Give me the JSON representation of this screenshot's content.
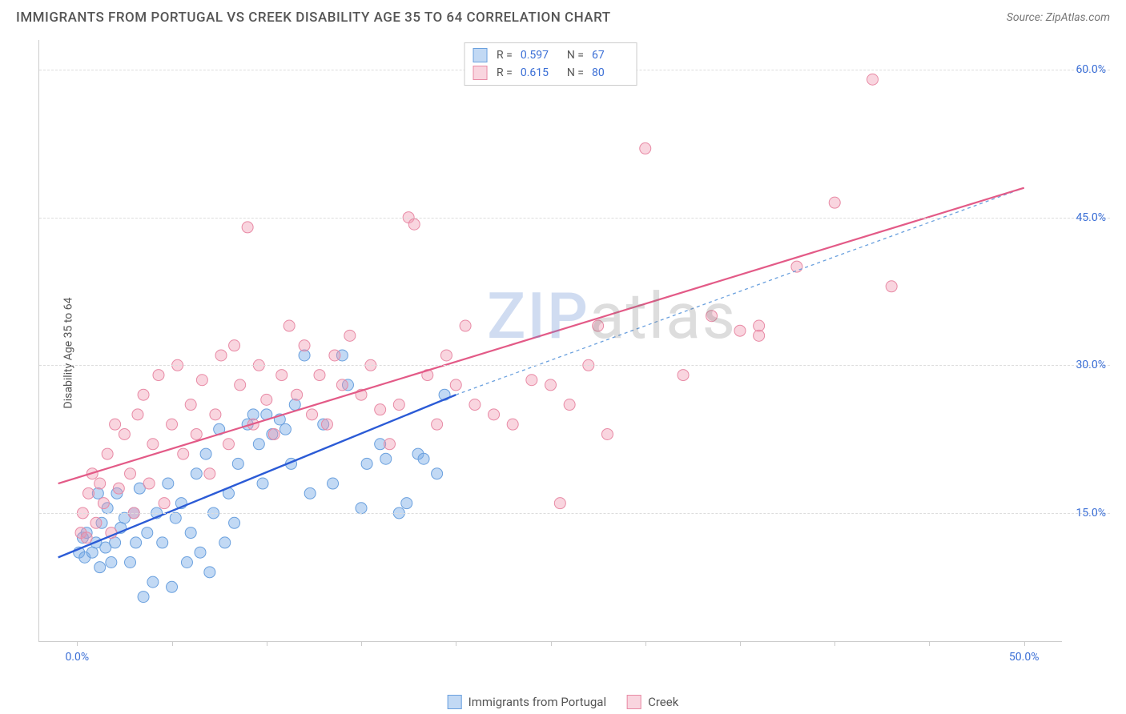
{
  "title": "IMMIGRANTS FROM PORTUGAL VS CREEK DISABILITY AGE 35 TO 64 CORRELATION CHART",
  "source": "Source: ZipAtlas.com",
  "ylabel": "Disability Age 35 to 64",
  "watermark_bold": "ZIP",
  "watermark_rest": "atlas",
  "chart": {
    "type": "scatter",
    "xlim": [
      -2,
      52
    ],
    "ylim": [
      2,
      63
    ],
    "xtick_positions": [
      0,
      5,
      10,
      15,
      20,
      25,
      30,
      35,
      40,
      45,
      50
    ],
    "xtick_labels": {
      "0": "0.0%",
      "50": "50.0%"
    },
    "ytick_positions": [
      15,
      30,
      45,
      60
    ],
    "ytick_labels": [
      "15.0%",
      "30.0%",
      "45.0%",
      "60.0%"
    ],
    "grid_color": "#dddddd",
    "axis_color": "#cccccc",
    "background": "#ffffff",
    "series": [
      {
        "name": "Immigrants from Portugal",
        "color_fill": "rgba(120,170,230,0.45)",
        "color_stroke": "#6aa0de",
        "marker_r": 7,
        "R": "0.597",
        "N": "67",
        "trend": {
          "x1": -1,
          "y1": 10.5,
          "x2": 20,
          "y2": 27,
          "stroke": "#2b5bd6",
          "width": 2.4,
          "dash": "none"
        },
        "trend_ext": {
          "x1": 20,
          "y1": 27,
          "x2": 50,
          "y2": 48,
          "stroke": "#6aa0de",
          "width": 1.3,
          "dash": "4,4"
        },
        "points": [
          [
            0.1,
            11
          ],
          [
            0.3,
            12.5
          ],
          [
            0.4,
            10.5
          ],
          [
            0.5,
            13
          ],
          [
            0.8,
            11
          ],
          [
            1,
            12
          ],
          [
            1.1,
            17
          ],
          [
            1.2,
            9.5
          ],
          [
            1.3,
            14
          ],
          [
            1.5,
            11.5
          ],
          [
            1.6,
            15.5
          ],
          [
            1.8,
            10
          ],
          [
            2,
            12
          ],
          [
            2.1,
            17
          ],
          [
            2.3,
            13.5
          ],
          [
            2.5,
            14.5
          ],
          [
            2.8,
            10
          ],
          [
            3,
            15
          ],
          [
            3.1,
            12
          ],
          [
            3.3,
            17.5
          ],
          [
            3.5,
            6.5
          ],
          [
            3.7,
            13
          ],
          [
            4,
            8
          ],
          [
            4.2,
            15
          ],
          [
            4.5,
            12
          ],
          [
            4.8,
            18
          ],
          [
            5,
            7.5
          ],
          [
            5.2,
            14.5
          ],
          [
            5.5,
            16
          ],
          [
            5.8,
            10
          ],
          [
            6,
            13
          ],
          [
            6.3,
            19
          ],
          [
            6.5,
            11
          ],
          [
            6.8,
            21
          ],
          [
            7,
            9
          ],
          [
            7.2,
            15
          ],
          [
            7.5,
            23.5
          ],
          [
            7.8,
            12
          ],
          [
            8,
            17
          ],
          [
            8.3,
            14
          ],
          [
            8.5,
            20
          ],
          [
            9,
            24
          ],
          [
            9.3,
            25
          ],
          [
            9.6,
            22
          ],
          [
            10,
            25
          ],
          [
            10.3,
            23
          ],
          [
            10.7,
            24.5
          ],
          [
            11,
            23.5
          ],
          [
            11.5,
            26
          ],
          [
            12,
            31
          ],
          [
            12.3,
            17
          ],
          [
            13,
            24
          ],
          [
            13.5,
            18
          ],
          [
            14,
            31
          ],
          [
            14.3,
            28
          ],
          [
            15,
            15.5
          ],
          [
            15.3,
            20
          ],
          [
            16,
            22
          ],
          [
            16.3,
            20.5
          ],
          [
            17,
            15
          ],
          [
            17.4,
            16
          ],
          [
            18,
            21
          ],
          [
            18.3,
            20.5
          ],
          [
            19,
            19
          ],
          [
            19.4,
            27
          ],
          [
            9.8,
            18
          ],
          [
            11.3,
            20
          ]
        ]
      },
      {
        "name": "Creek",
        "color_fill": "rgba(240,150,175,0.40)",
        "color_stroke": "#e88aa5",
        "marker_r": 7,
        "R": "0.615",
        "N": "80",
        "trend": {
          "x1": -1,
          "y1": 18,
          "x2": 50,
          "y2": 48,
          "stroke": "#e35a87",
          "width": 2.2,
          "dash": "none"
        },
        "points": [
          [
            0.2,
            13
          ],
          [
            0.3,
            15
          ],
          [
            0.5,
            12.5
          ],
          [
            0.6,
            17
          ],
          [
            0.8,
            19
          ],
          [
            1,
            14
          ],
          [
            1.2,
            18
          ],
          [
            1.4,
            16
          ],
          [
            1.6,
            21
          ],
          [
            1.8,
            13
          ],
          [
            2,
            24
          ],
          [
            2.2,
            17.5
          ],
          [
            2.5,
            23
          ],
          [
            2.8,
            19
          ],
          [
            3,
            15
          ],
          [
            3.2,
            25
          ],
          [
            3.5,
            27
          ],
          [
            3.8,
            18
          ],
          [
            4,
            22
          ],
          [
            4.3,
            29
          ],
          [
            4.6,
            16
          ],
          [
            5,
            24
          ],
          [
            5.3,
            30
          ],
          [
            5.6,
            21
          ],
          [
            6,
            26
          ],
          [
            6.3,
            23
          ],
          [
            6.6,
            28.5
          ],
          [
            7,
            19
          ],
          [
            7.3,
            25
          ],
          [
            7.6,
            31
          ],
          [
            8,
            22
          ],
          [
            8.3,
            32
          ],
          [
            8.6,
            28
          ],
          [
            9,
            44
          ],
          [
            9.3,
            24
          ],
          [
            9.6,
            30
          ],
          [
            10,
            26.5
          ],
          [
            10.4,
            23
          ],
          [
            10.8,
            29
          ],
          [
            11.2,
            34
          ],
          [
            11.6,
            27
          ],
          [
            12,
            32
          ],
          [
            12.4,
            25
          ],
          [
            12.8,
            29
          ],
          [
            13.2,
            24
          ],
          [
            13.6,
            31
          ],
          [
            14,
            28
          ],
          [
            14.4,
            33
          ],
          [
            15,
            27
          ],
          [
            15.5,
            30
          ],
          [
            16,
            25.5
          ],
          [
            16.5,
            22
          ],
          [
            17,
            26
          ],
          [
            17.5,
            45
          ],
          [
            17.8,
            44.3
          ],
          [
            18.5,
            29
          ],
          [
            19,
            24
          ],
          [
            19.5,
            31
          ],
          [
            20,
            28
          ],
          [
            20.5,
            34
          ],
          [
            21,
            26
          ],
          [
            22,
            25
          ],
          [
            23,
            24
          ],
          [
            24,
            28.5
          ],
          [
            25,
            28
          ],
          [
            25.5,
            16
          ],
          [
            26,
            26
          ],
          [
            27,
            30
          ],
          [
            28,
            23
          ],
          [
            30,
            52
          ],
          [
            32,
            29
          ],
          [
            33.5,
            35
          ],
          [
            35,
            33.5
          ],
          [
            36,
            34
          ],
          [
            38,
            40
          ],
          [
            40,
            46.5
          ],
          [
            42,
            59
          ],
          [
            43,
            38
          ],
          [
            36,
            33
          ],
          [
            27.5,
            34
          ]
        ]
      }
    ]
  },
  "legend_top": [
    {
      "swatch_fill": "rgba(120,170,230,0.45)",
      "swatch_stroke": "#6aa0de",
      "R": "0.597",
      "N": "67"
    },
    {
      "swatch_fill": "rgba(240,150,175,0.40)",
      "swatch_stroke": "#e88aa5",
      "R": "0.615",
      "N": "80"
    }
  ],
  "legend_bottom": [
    {
      "swatch_fill": "rgba(120,170,230,0.45)",
      "swatch_stroke": "#6aa0de",
      "label": "Immigrants from Portugal"
    },
    {
      "swatch_fill": "rgba(240,150,175,0.40)",
      "swatch_stroke": "#e88aa5",
      "label": "Creek"
    }
  ]
}
